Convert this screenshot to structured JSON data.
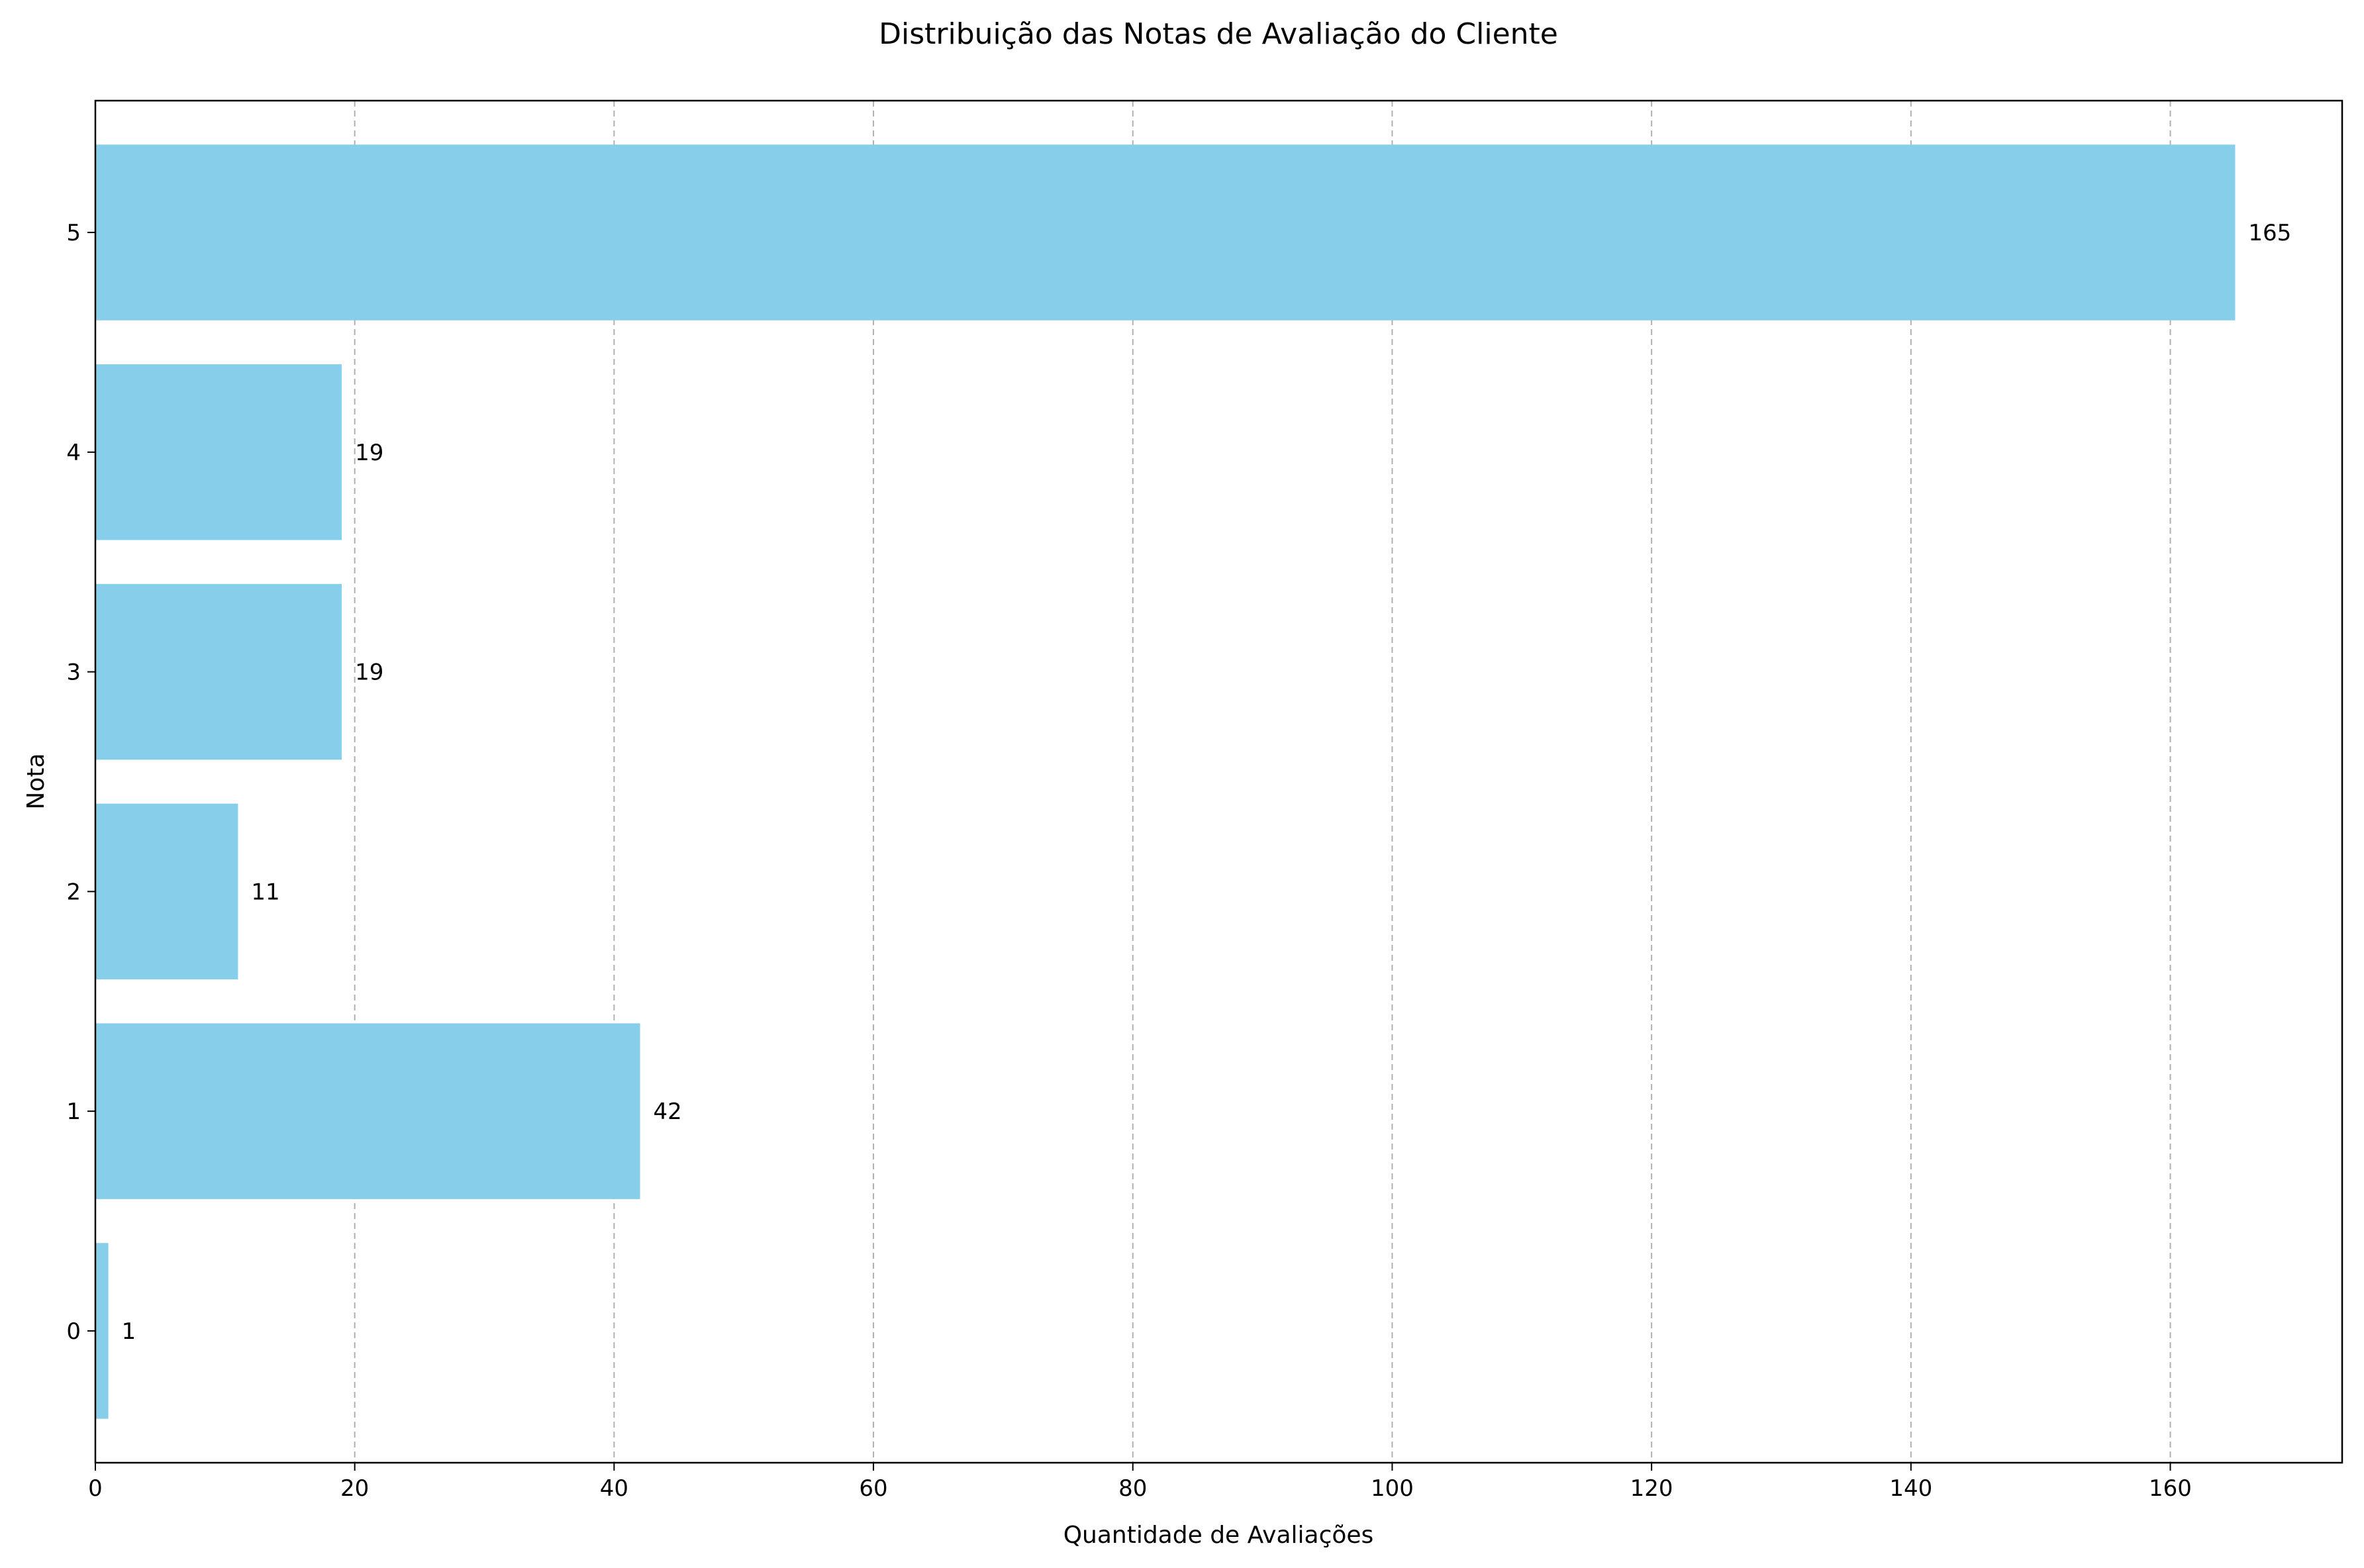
{
  "chart_data": {
    "type": "bar",
    "orientation": "horizontal",
    "title": "Distribuição das Notas de Avaliação do Cliente",
    "xlabel": "Quantidade de Avaliações",
    "ylabel": "Nota",
    "categories": [
      "0",
      "1",
      "2",
      "3",
      "4",
      "5"
    ],
    "values": [
      1,
      42,
      11,
      19,
      19,
      165
    ],
    "xlim": [
      0,
      173.25
    ],
    "xticks": [
      0,
      20,
      40,
      60,
      80,
      100,
      120,
      140,
      160
    ],
    "grid": "x-dashed",
    "bar_color": "#87CEEB",
    "grid_color": "#b0b0b0",
    "show_value_labels": true
  }
}
